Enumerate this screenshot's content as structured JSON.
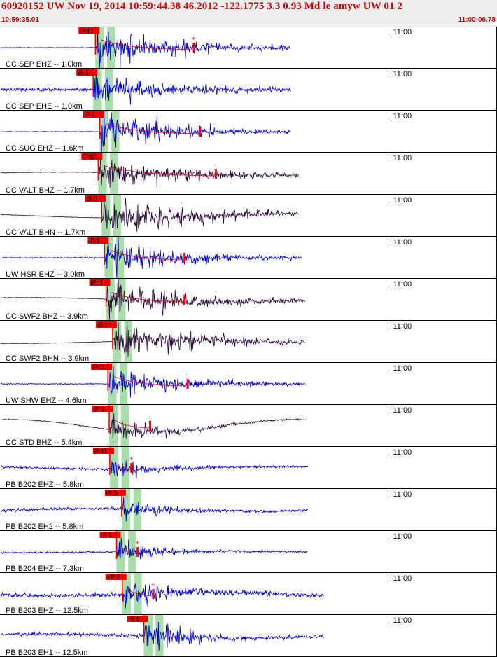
{
  "header": {
    "title": "60920152 UW Nov 19, 2014 10:59:44.38   46.2012 -122.1775  3.3 0.93 Md le amyw UW 01   2",
    "start_time": "10:59:35.01",
    "end_time": "11:00:06.78"
  },
  "colors": {
    "header_text": "#cc0000",
    "trace_blue": "#0000cc",
    "trace_dark": "#2a0a3a",
    "pick": "#ee0000",
    "window": "#9ad79a",
    "grid": "#000000"
  },
  "chart_data": {
    "type": "seismogram",
    "time_range": [
      "10:59:35.01",
      "11:00:06.78"
    ],
    "time_mark": {
      "label": "11:00",
      "t": 24.99
    },
    "traces": [
      {
        "label": "CC SEP EHZ -- 1.0km",
        "color": "blue",
        "pick_label": "iPd0",
        "pick_t": 6.1,
        "end_t": 18.6,
        "amp": 1.0,
        "noise": 0.06,
        "lowfreq": 0.0,
        "decay": 6.0,
        "marker": "+",
        "marker_t": 12.4
      },
      {
        "label": "CC SEP EHE -- 1.0km",
        "color": "blue",
        "pick_label": "iS 1",
        "pick_t": 5.96,
        "end_t": 18.6,
        "amp": 0.9,
        "noise": 0.35,
        "lowfreq": 0.0,
        "decay": 5.0,
        "marker": "",
        "marker_t": null
      },
      {
        "label": "CC SUG EHZ -- 1.6km",
        "color": "blue",
        "pick_label": "iP 1",
        "pick_t": 6.38,
        "end_t": 18.6,
        "amp": 1.0,
        "noise": 0.06,
        "lowfreq": 0.0,
        "decay": 5.0,
        "marker": "-",
        "marker_t": 12.8
      },
      {
        "label": "CC VALT BHZ -- 1.7km",
        "color": "dark",
        "pick_label": "iPd0",
        "pick_t": 6.28,
        "end_t": 19.1,
        "amp": 0.9,
        "noise": 0.08,
        "lowfreq": 0.25,
        "decay": 6.0,
        "marker": "-",
        "marker_t": 13.8
      },
      {
        "label": "CC VALT BHN -- 1.7km",
        "color": "dark",
        "pick_label": "iS 0",
        "pick_t": 6.5,
        "end_t": 19.1,
        "amp": 1.0,
        "noise": 0.06,
        "lowfreq": 0.35,
        "decay": 6.0,
        "marker": "",
        "marker_t": null
      },
      {
        "label": "UW HSR EHZ -- 3.0km",
        "color": "blue",
        "pick_label": "iP 1",
        "pick_t": 6.68,
        "end_t": 19.3,
        "amp": 1.0,
        "noise": 0.12,
        "lowfreq": 0.0,
        "decay": 5.0,
        "marker": "",
        "marker_t": 11.8
      },
      {
        "label": "CC SWF2 BHZ -- 3.9km",
        "color": "dark",
        "pick_label": "iPd1",
        "pick_t": 6.78,
        "end_t": 19.5,
        "amp": 0.9,
        "noise": 0.08,
        "lowfreq": 0.35,
        "decay": 6.0,
        "marker": "-",
        "marker_t": 11.8
      },
      {
        "label": "CC SWF2 BHN -- 3.9km",
        "color": "dark",
        "pick_label": "iS 1",
        "pick_t": 7.2,
        "end_t": 19.5,
        "amp": 0.9,
        "noise": 0.06,
        "lowfreq": 0.25,
        "decay": 6.0,
        "marker": "",
        "marker_t": null
      },
      {
        "label": "UW SHW EHZ -- 4.6km",
        "color": "blue",
        "pick_label": "iPc1",
        "pick_t": 6.9,
        "end_t": 19.5,
        "amp": 0.9,
        "noise": 0.1,
        "lowfreq": 0.0,
        "decay": 5.0,
        "marker": "-",
        "marker_t": 12.0
      },
      {
        "label": "CC STD BHZ -- 5.4km",
        "color": "dark",
        "pick_label": "iP 1",
        "pick_t": 6.98,
        "end_t": 19.6,
        "amp": 0.6,
        "noise": 0.1,
        "lowfreq": 1.0,
        "decay": 4.0,
        "marker": "-",
        "marker_t": 9.6
      },
      {
        "label": "PB B202 EHZ -- 5.8km",
        "color": "blue",
        "pick_label": "iPd1",
        "pick_t": 7.02,
        "end_t": 19.7,
        "amp": 0.7,
        "noise": 0.25,
        "lowfreq": 0.2,
        "decay": 2.5,
        "marker": "+",
        "marker_t": 8.4
      },
      {
        "label": "PB B202 EH2 -- 5.8km",
        "color": "blue",
        "pick_label": "iS 0",
        "pick_t": 7.78,
        "end_t": 19.7,
        "amp": 0.6,
        "noise": 0.3,
        "lowfreq": 0.2,
        "decay": 2.5,
        "marker": "",
        "marker_t": null
      },
      {
        "label": "PB B204 EHZ -- 7.3km",
        "color": "blue",
        "pick_label": "iP 1",
        "pick_t": 7.45,
        "end_t": 19.7,
        "amp": 0.7,
        "noise": 0.18,
        "lowfreq": 0.1,
        "decay": 2.5,
        "marker": "+",
        "marker_t": 8.8
      },
      {
        "label": "PB B203 EHZ -- 12.5km",
        "color": "blue",
        "pick_label": "eP 2",
        "pick_t": 7.82,
        "end_t": 20.7,
        "amp": 0.9,
        "noise": 0.45,
        "lowfreq": 0.3,
        "decay": 3.0,
        "marker": "+",
        "marker_t": 9.8
      },
      {
        "label": "PB B203 EH1 -- 12.5km",
        "color": "blue",
        "pick_label": "iS 1",
        "pick_t": 9.2,
        "end_t": 20.7,
        "amp": 0.9,
        "noise": 0.35,
        "lowfreq": 0.3,
        "decay": 3.0,
        "marker": "",
        "marker_t": null
      }
    ]
  }
}
